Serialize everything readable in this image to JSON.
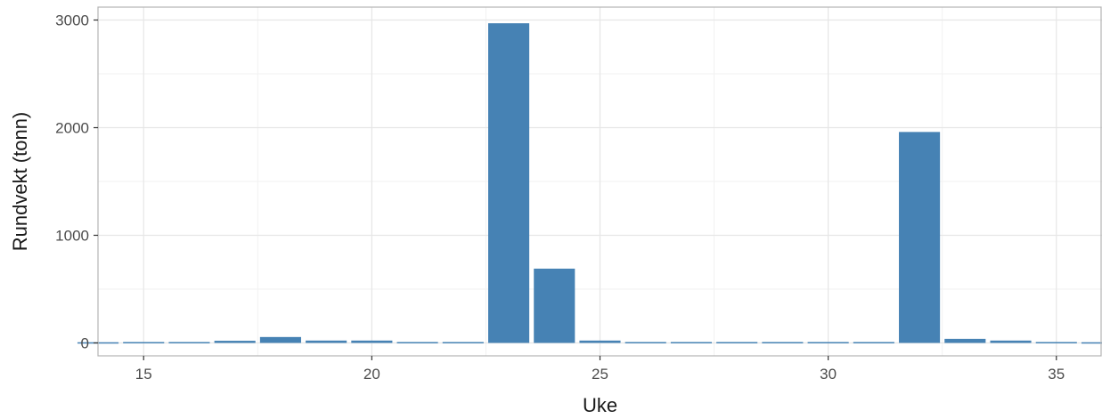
{
  "chart_data": {
    "type": "bar",
    "title": "",
    "xlabel": "Uke",
    "ylabel": "Rundvekt (tonn)",
    "x": [
      14,
      15,
      16,
      17,
      18,
      19,
      20,
      21,
      22,
      23,
      24,
      25,
      26,
      27,
      28,
      29,
      30,
      31,
      32,
      33,
      34,
      35,
      36
    ],
    "values": [
      0,
      2,
      2,
      20,
      55,
      22,
      22,
      2,
      2,
      2970,
      690,
      22,
      2,
      2,
      2,
      2,
      2,
      2,
      1960,
      38,
      22,
      2,
      0
    ],
    "xlim": [
      14,
      36
    ],
    "ylim": [
      -120,
      3120
    ],
    "xticks": [
      15,
      20,
      25,
      30,
      35
    ],
    "yticks": [
      0,
      1000,
      2000,
      3000
    ],
    "grid": true,
    "colors": {
      "bar": "#4682b4",
      "grid_major": "#e6e6e6",
      "grid_minor": "#f2f2f2",
      "border": "#b3b3b3"
    }
  }
}
